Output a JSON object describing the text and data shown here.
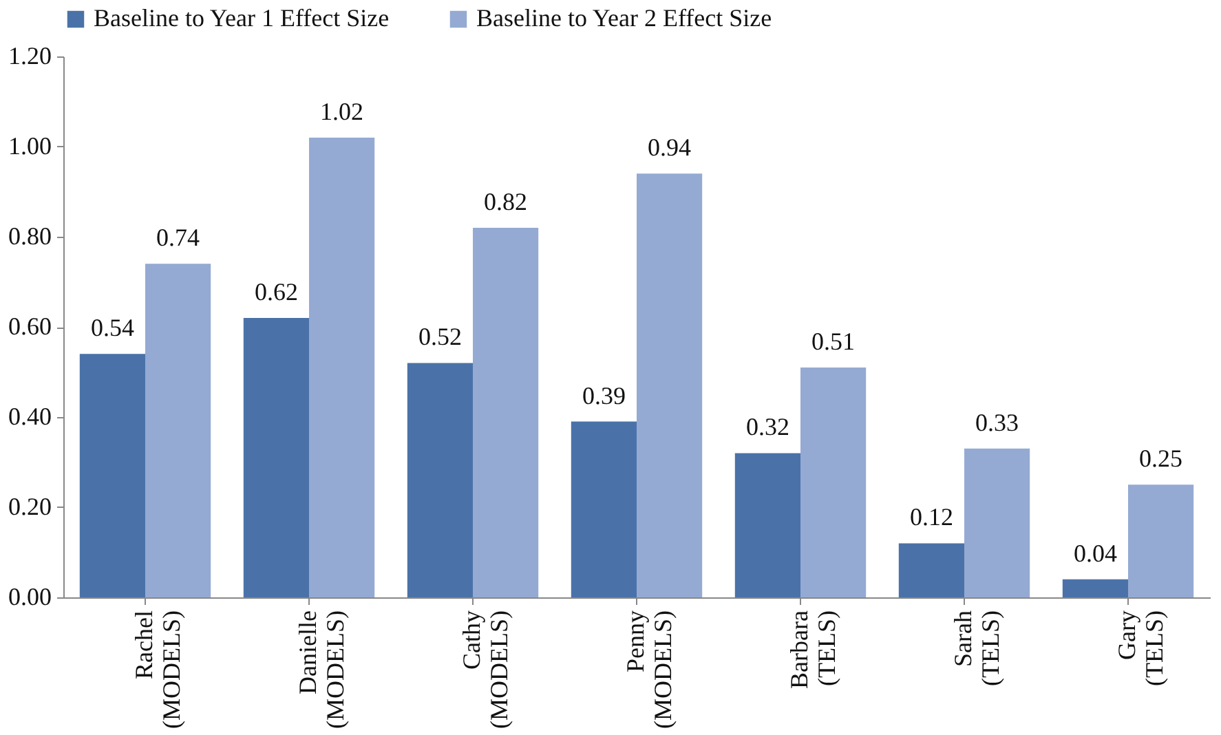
{
  "chart_data": {
    "type": "bar",
    "categories": [
      "Rachel (MODELS)",
      "Danielle (MODELS)",
      "Cathy (MODELS)",
      "Penny (MODELS)",
      "Barbara (TELS)",
      "Sarah (TELS)",
      "Gary (TELS)"
    ],
    "series": [
      {
        "name": "Baseline to Year 1 Effect Size",
        "color": "#4a72a8",
        "values": [
          0.54,
          0.62,
          0.52,
          0.39,
          0.32,
          0.12,
          0.04
        ]
      },
      {
        "name": "Baseline to Year 2  Effect Size",
        "color": "#94aad3",
        "values": [
          0.74,
          1.02,
          0.82,
          0.94,
          0.51,
          0.33,
          0.25
        ]
      }
    ],
    "ylim": [
      0,
      1.2
    ],
    "yticks": [
      {
        "value": 0,
        "label": "0.00"
      },
      {
        "value": 0.2,
        "label": "0.20"
      },
      {
        "value": 0.4,
        "label": "0.40"
      },
      {
        "value": 0.6,
        "label": "0.60"
      },
      {
        "value": 0.8,
        "label": "0.80"
      },
      {
        "value": 1,
        "label": "1.00"
      },
      {
        "value": 1.2,
        "label": "1.20"
      }
    ],
    "data_labels": true,
    "legend": "top",
    "grid": false
  }
}
